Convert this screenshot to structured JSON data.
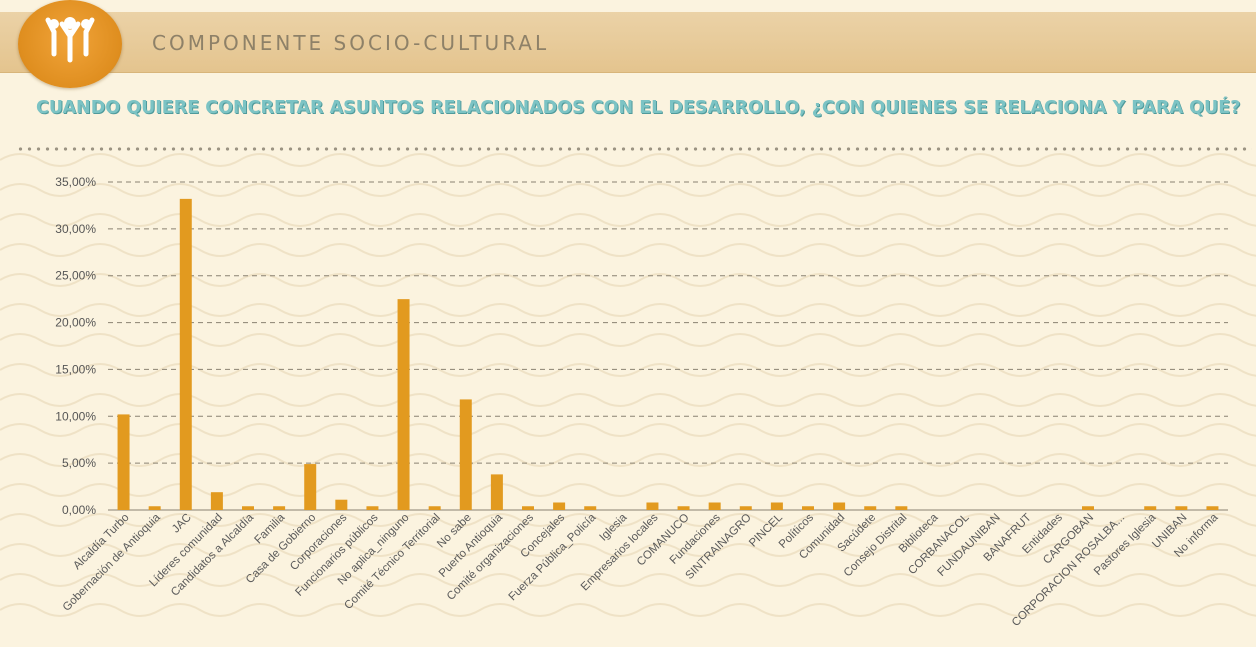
{
  "header": {
    "title": "COMPONENTE SOCIO-CULTURAL",
    "logo_icon": "people-group-icon"
  },
  "question": "CUANDO QUIERE CONCRETAR ASUNTOS RELACIONADOS CON EL DESARROLLO, ¿CON QUIENES SE RELACIONA Y PARA QUÉ?",
  "colors": {
    "bar": "#e29a1f",
    "question": "#7cc3c4",
    "logo": "#e0901f",
    "header_band": "#e6c994",
    "gridline": "#8a8272"
  },
  "chart_data": {
    "type": "bar",
    "title": "",
    "xlabel": "",
    "ylabel": "",
    "ylim": [
      0,
      0.35
    ],
    "grid": true,
    "legend": "none",
    "ytick_values": [
      0,
      0.05,
      0.1,
      0.15,
      0.2,
      0.25,
      0.3,
      0.35
    ],
    "ytick_labels": [
      "0,00%",
      "5,00%",
      "10,00%",
      "15,00%",
      "20,00%",
      "25,00%",
      "30,00%",
      "35,00%"
    ],
    "categories": [
      "Alcaldía Turbo",
      "Gobernación de Antioquia",
      "JAC",
      "Líderes comunidad",
      "Candidatos a Alcaldía",
      "Familia",
      "Casa de Gobierno",
      "Corporaciones",
      "Funcionarios públicos",
      "No aplica_ninguno",
      "Comité Técnico Territorial",
      "No sabe",
      "Puerto Antioquia",
      "Comité organizaciones",
      "Concejales",
      "Fuerza Pública_Policía",
      "Iglesia",
      "Empresarios locales",
      "COMANUCO",
      "Fundaciones",
      "SINTRAINAGRO",
      "PINCEL",
      "Políticos",
      "Comunidad",
      "Sacúdete",
      "Consejo Distrital",
      "Biblioteca",
      "CORBANACOL",
      "FUNDAUNIBAN",
      "BANAFRUT",
      "Entidades",
      "CARGOBAN",
      "CORPORACION ROSALBA...",
      "Pastores Iglesia",
      "UNIBAN",
      "No informa"
    ],
    "values": [
      0.102,
      0.004,
      0.332,
      0.019,
      0.004,
      0.004,
      0.049,
      0.011,
      0.004,
      0.225,
      0.004,
      0.118,
      0.038,
      0.004,
      0.008,
      0.004,
      0.0,
      0.008,
      0.004,
      0.008,
      0.004,
      0.008,
      0.004,
      0.008,
      0.004,
      0.004,
      0.0,
      0.0,
      0.0,
      0.0,
      0.0,
      0.004,
      0.0,
      0.004,
      0.004,
      0.004
    ]
  }
}
